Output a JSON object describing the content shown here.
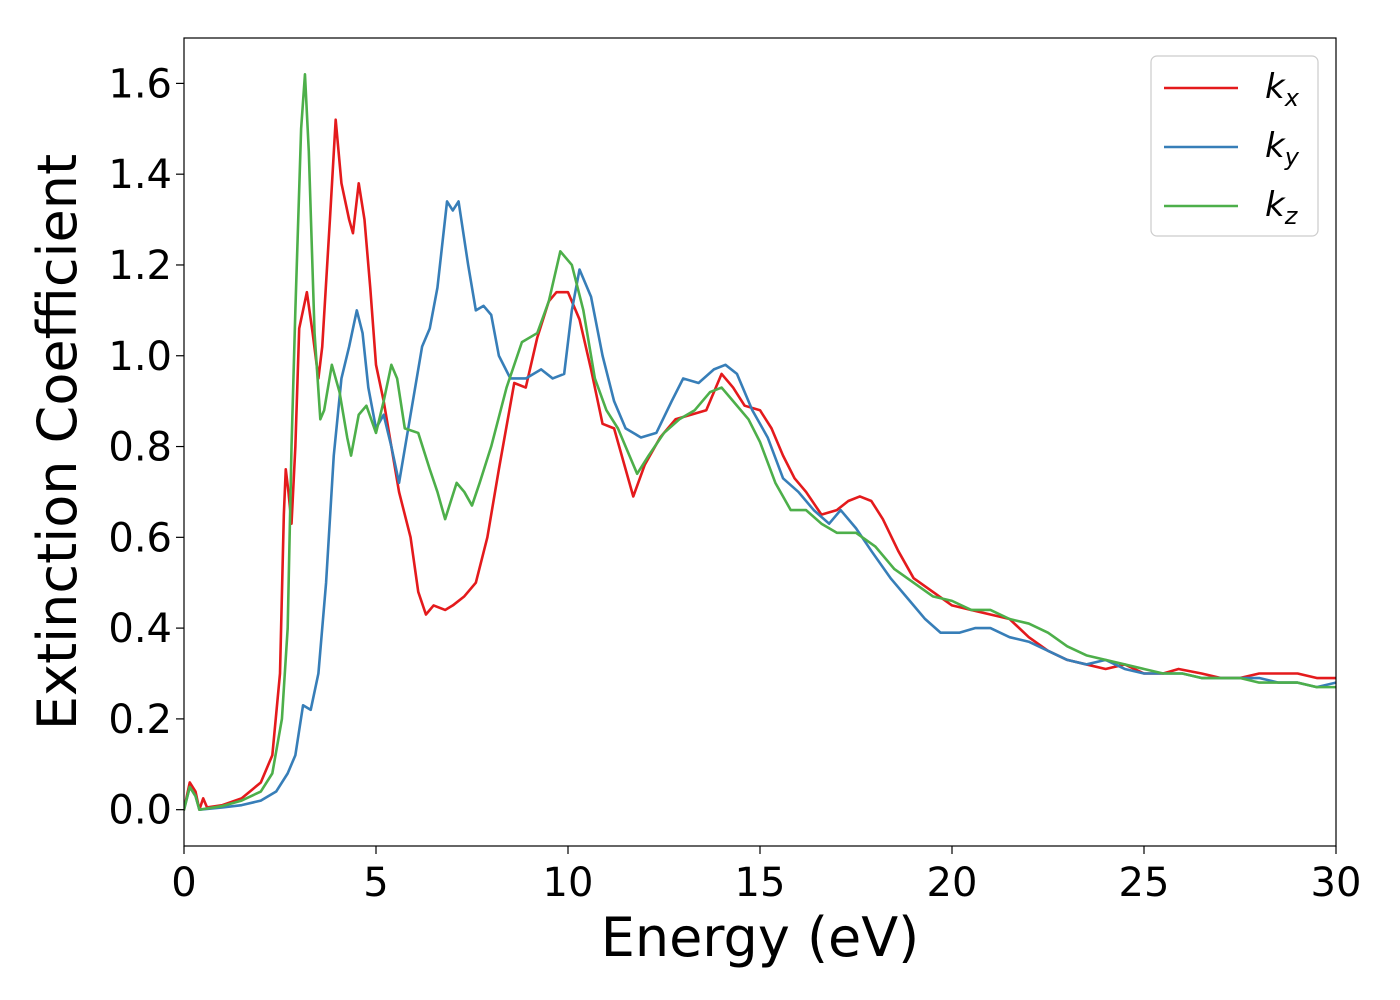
{
  "chart_data": {
    "type": "line",
    "title": "",
    "xlabel": "Energy (eV)",
    "ylabel": "Extinction Coefficient",
    "xlim": [
      0,
      30
    ],
    "ylim": [
      -0.08,
      1.7
    ],
    "xticks": [
      0,
      5,
      10,
      15,
      20,
      25,
      30
    ],
    "xtick_labels": [
      "0",
      "5",
      "10",
      "15",
      "20",
      "25",
      "30"
    ],
    "yticks": [
      0.0,
      0.2,
      0.4,
      0.6,
      0.8,
      1.0,
      1.2,
      1.4,
      1.6
    ],
    "ytick_labels": [
      "0.0",
      "0.2",
      "0.4",
      "0.6",
      "0.8",
      "1.0",
      "1.2",
      "1.4",
      "1.6"
    ],
    "grid": false,
    "legend_position": "top-right",
    "series": [
      {
        "name": "k_x",
        "label_main": "k",
        "label_sub": "x",
        "color": "#e41a1c",
        "points": [
          [
            0,
            0.0
          ],
          [
            0.15,
            0.06
          ],
          [
            0.3,
            0.04
          ],
          [
            0.4,
            0.0
          ],
          [
            0.5,
            0.025
          ],
          [
            0.6,
            0.005
          ],
          [
            1.0,
            0.01
          ],
          [
            1.5,
            0.025
          ],
          [
            2.0,
            0.06
          ],
          [
            2.3,
            0.12
          ],
          [
            2.5,
            0.3
          ],
          [
            2.6,
            0.65
          ],
          [
            2.65,
            0.75
          ],
          [
            2.72,
            0.7
          ],
          [
            2.8,
            0.63
          ],
          [
            2.9,
            0.8
          ],
          [
            3.0,
            1.06
          ],
          [
            3.1,
            1.1
          ],
          [
            3.2,
            1.14
          ],
          [
            3.35,
            1.05
          ],
          [
            3.5,
            0.95
          ],
          [
            3.6,
            1.02
          ],
          [
            3.8,
            1.3
          ],
          [
            3.95,
            1.52
          ],
          [
            4.1,
            1.38
          ],
          [
            4.3,
            1.3
          ],
          [
            4.4,
            1.27
          ],
          [
            4.55,
            1.38
          ],
          [
            4.7,
            1.3
          ],
          [
            4.85,
            1.15
          ],
          [
            5.0,
            0.98
          ],
          [
            5.2,
            0.9
          ],
          [
            5.4,
            0.8
          ],
          [
            5.6,
            0.7
          ],
          [
            5.9,
            0.6
          ],
          [
            6.1,
            0.48
          ],
          [
            6.3,
            0.43
          ],
          [
            6.5,
            0.45
          ],
          [
            6.8,
            0.44
          ],
          [
            7.0,
            0.45
          ],
          [
            7.3,
            0.47
          ],
          [
            7.6,
            0.5
          ],
          [
            7.9,
            0.6
          ],
          [
            8.2,
            0.75
          ],
          [
            8.6,
            0.94
          ],
          [
            8.9,
            0.93
          ],
          [
            9.2,
            1.04
          ],
          [
            9.5,
            1.12
          ],
          [
            9.7,
            1.14
          ],
          [
            10.0,
            1.14
          ],
          [
            10.3,
            1.08
          ],
          [
            10.6,
            0.97
          ],
          [
            10.9,
            0.85
          ],
          [
            11.2,
            0.84
          ],
          [
            11.5,
            0.75
          ],
          [
            11.7,
            0.69
          ],
          [
            12.0,
            0.76
          ],
          [
            12.4,
            0.82
          ],
          [
            12.8,
            0.86
          ],
          [
            13.2,
            0.87
          ],
          [
            13.6,
            0.88
          ],
          [
            14.0,
            0.96
          ],
          [
            14.3,
            0.93
          ],
          [
            14.6,
            0.89
          ],
          [
            15.0,
            0.88
          ],
          [
            15.3,
            0.84
          ],
          [
            15.6,
            0.78
          ],
          [
            15.9,
            0.73
          ],
          [
            16.2,
            0.7
          ],
          [
            16.6,
            0.65
          ],
          [
            17.0,
            0.66
          ],
          [
            17.3,
            0.68
          ],
          [
            17.6,
            0.69
          ],
          [
            17.9,
            0.68
          ],
          [
            18.2,
            0.64
          ],
          [
            18.6,
            0.57
          ],
          [
            19.0,
            0.51
          ],
          [
            19.5,
            0.48
          ],
          [
            20.0,
            0.45
          ],
          [
            20.5,
            0.44
          ],
          [
            21.0,
            0.43
          ],
          [
            21.5,
            0.42
          ],
          [
            22.0,
            0.38
          ],
          [
            22.5,
            0.35
          ],
          [
            23.0,
            0.33
          ],
          [
            23.5,
            0.32
          ],
          [
            24.0,
            0.31
          ],
          [
            24.5,
            0.32
          ],
          [
            25.0,
            0.3
          ],
          [
            25.5,
            0.3
          ],
          [
            25.9,
            0.31
          ],
          [
            26.5,
            0.3
          ],
          [
            27.0,
            0.29
          ],
          [
            27.5,
            0.29
          ],
          [
            28.0,
            0.3
          ],
          [
            28.5,
            0.3
          ],
          [
            29.0,
            0.3
          ],
          [
            29.5,
            0.29
          ],
          [
            30.0,
            0.29
          ]
        ]
      },
      {
        "name": "k_y",
        "label_main": "k",
        "label_sub": "y",
        "color": "#377eb8",
        "points": [
          [
            0,
            0.0
          ],
          [
            0.15,
            0.05
          ],
          [
            0.3,
            0.03
          ],
          [
            0.4,
            0.0
          ],
          [
            1.0,
            0.005
          ],
          [
            1.5,
            0.01
          ],
          [
            2.0,
            0.02
          ],
          [
            2.4,
            0.04
          ],
          [
            2.7,
            0.08
          ],
          [
            2.9,
            0.12
          ],
          [
            3.1,
            0.23
          ],
          [
            3.3,
            0.22
          ],
          [
            3.5,
            0.3
          ],
          [
            3.7,
            0.5
          ],
          [
            3.9,
            0.78
          ],
          [
            4.1,
            0.95
          ],
          [
            4.3,
            1.02
          ],
          [
            4.5,
            1.1
          ],
          [
            4.65,
            1.05
          ],
          [
            4.8,
            0.93
          ],
          [
            5.0,
            0.84
          ],
          [
            5.2,
            0.87
          ],
          [
            5.4,
            0.8
          ],
          [
            5.6,
            0.72
          ],
          [
            5.8,
            0.82
          ],
          [
            6.0,
            0.92
          ],
          [
            6.2,
            1.02
          ],
          [
            6.4,
            1.06
          ],
          [
            6.6,
            1.15
          ],
          [
            6.85,
            1.34
          ],
          [
            7.0,
            1.32
          ],
          [
            7.15,
            1.34
          ],
          [
            7.4,
            1.2
          ],
          [
            7.6,
            1.1
          ],
          [
            7.8,
            1.11
          ],
          [
            8.0,
            1.09
          ],
          [
            8.2,
            1.0
          ],
          [
            8.5,
            0.95
          ],
          [
            8.9,
            0.95
          ],
          [
            9.3,
            0.97
          ],
          [
            9.6,
            0.95
          ],
          [
            9.9,
            0.96
          ],
          [
            10.1,
            1.1
          ],
          [
            10.3,
            1.19
          ],
          [
            10.6,
            1.13
          ],
          [
            10.9,
            1.0
          ],
          [
            11.2,
            0.9
          ],
          [
            11.5,
            0.84
          ],
          [
            11.9,
            0.82
          ],
          [
            12.3,
            0.83
          ],
          [
            12.7,
            0.9
          ],
          [
            13.0,
            0.95
          ],
          [
            13.4,
            0.94
          ],
          [
            13.8,
            0.97
          ],
          [
            14.1,
            0.98
          ],
          [
            14.4,
            0.96
          ],
          [
            14.8,
            0.88
          ],
          [
            15.2,
            0.82
          ],
          [
            15.6,
            0.73
          ],
          [
            16.0,
            0.7
          ],
          [
            16.4,
            0.66
          ],
          [
            16.8,
            0.63
          ],
          [
            17.1,
            0.66
          ],
          [
            17.5,
            0.62
          ],
          [
            17.9,
            0.57
          ],
          [
            18.4,
            0.51
          ],
          [
            18.9,
            0.46
          ],
          [
            19.3,
            0.42
          ],
          [
            19.7,
            0.39
          ],
          [
            20.2,
            0.39
          ],
          [
            20.6,
            0.4
          ],
          [
            21.0,
            0.4
          ],
          [
            21.5,
            0.38
          ],
          [
            22.0,
            0.37
          ],
          [
            22.5,
            0.35
          ],
          [
            23.0,
            0.33
          ],
          [
            23.5,
            0.32
          ],
          [
            24.0,
            0.33
          ],
          [
            24.5,
            0.31
          ],
          [
            25.0,
            0.3
          ],
          [
            25.5,
            0.3
          ],
          [
            26.0,
            0.3
          ],
          [
            26.5,
            0.29
          ],
          [
            27.0,
            0.29
          ],
          [
            27.5,
            0.29
          ],
          [
            28.0,
            0.29
          ],
          [
            28.5,
            0.28
          ],
          [
            29.0,
            0.28
          ],
          [
            29.5,
            0.27
          ],
          [
            30.0,
            0.28
          ]
        ]
      },
      {
        "name": "k_z",
        "label_main": "k",
        "label_sub": "z",
        "color": "#4daf4a",
        "points": [
          [
            0,
            0.0
          ],
          [
            0.15,
            0.05
          ],
          [
            0.3,
            0.03
          ],
          [
            0.4,
            0.0
          ],
          [
            1.0,
            0.008
          ],
          [
            1.5,
            0.02
          ],
          [
            2.0,
            0.04
          ],
          [
            2.3,
            0.08
          ],
          [
            2.55,
            0.2
          ],
          [
            2.7,
            0.4
          ],
          [
            2.8,
            0.8
          ],
          [
            2.9,
            1.1
          ],
          [
            3.05,
            1.5
          ],
          [
            3.15,
            1.62
          ],
          [
            3.25,
            1.45
          ],
          [
            3.4,
            1.05
          ],
          [
            3.55,
            0.86
          ],
          [
            3.65,
            0.88
          ],
          [
            3.85,
            0.98
          ],
          [
            4.05,
            0.92
          ],
          [
            4.25,
            0.82
          ],
          [
            4.35,
            0.78
          ],
          [
            4.55,
            0.87
          ],
          [
            4.75,
            0.89
          ],
          [
            5.0,
            0.83
          ],
          [
            5.2,
            0.9
          ],
          [
            5.4,
            0.98
          ],
          [
            5.55,
            0.95
          ],
          [
            5.75,
            0.84
          ],
          [
            6.1,
            0.83
          ],
          [
            6.4,
            0.75
          ],
          [
            6.6,
            0.7
          ],
          [
            6.8,
            0.64
          ],
          [
            6.95,
            0.68
          ],
          [
            7.1,
            0.72
          ],
          [
            7.3,
            0.7
          ],
          [
            7.5,
            0.67
          ],
          [
            7.7,
            0.72
          ],
          [
            8.0,
            0.8
          ],
          [
            8.4,
            0.93
          ],
          [
            8.8,
            1.03
          ],
          [
            9.2,
            1.05
          ],
          [
            9.5,
            1.12
          ],
          [
            9.8,
            1.23
          ],
          [
            10.1,
            1.2
          ],
          [
            10.4,
            1.1
          ],
          [
            10.7,
            0.95
          ],
          [
            11.0,
            0.88
          ],
          [
            11.3,
            0.84
          ],
          [
            11.6,
            0.78
          ],
          [
            11.8,
            0.74
          ],
          [
            12.1,
            0.78
          ],
          [
            12.5,
            0.83
          ],
          [
            12.9,
            0.86
          ],
          [
            13.3,
            0.88
          ],
          [
            13.7,
            0.92
          ],
          [
            14.0,
            0.93
          ],
          [
            14.3,
            0.9
          ],
          [
            14.7,
            0.86
          ],
          [
            15.0,
            0.81
          ],
          [
            15.4,
            0.72
          ],
          [
            15.8,
            0.66
          ],
          [
            16.2,
            0.66
          ],
          [
            16.6,
            0.63
          ],
          [
            17.0,
            0.61
          ],
          [
            17.5,
            0.61
          ],
          [
            18.0,
            0.58
          ],
          [
            18.5,
            0.53
          ],
          [
            19.0,
            0.5
          ],
          [
            19.5,
            0.47
          ],
          [
            20.0,
            0.46
          ],
          [
            20.5,
            0.44
          ],
          [
            21.0,
            0.44
          ],
          [
            21.5,
            0.42
          ],
          [
            22.0,
            0.41
          ],
          [
            22.5,
            0.39
          ],
          [
            23.0,
            0.36
          ],
          [
            23.5,
            0.34
          ],
          [
            24.0,
            0.33
          ],
          [
            24.5,
            0.32
          ],
          [
            25.0,
            0.31
          ],
          [
            25.5,
            0.3
          ],
          [
            26.0,
            0.3
          ],
          [
            26.5,
            0.29
          ],
          [
            27.0,
            0.29
          ],
          [
            27.5,
            0.29
          ],
          [
            28.0,
            0.28
          ],
          [
            28.5,
            0.28
          ],
          [
            29.0,
            0.28
          ],
          [
            29.5,
            0.27
          ],
          [
            30.0,
            0.27
          ]
        ]
      }
    ]
  }
}
